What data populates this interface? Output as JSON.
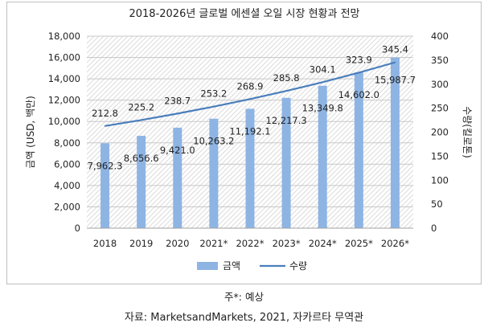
{
  "notes": {
    "forecast": "주*: 예상",
    "source": "자료: MarketsandMarkets, 2021, 자카르타 무역관"
  },
  "chart_data": {
    "type": "bar",
    "title": "2018-2026년 글로벌 에센셜 오일 시장 현황과 전망",
    "categories": [
      "2018",
      "2019",
      "2020",
      "2021*",
      "2022*",
      "2023*",
      "2024*",
      "2025*",
      "2026*"
    ],
    "series": [
      {
        "name": "금액",
        "type": "bar",
        "axis": "left",
        "color": "#8eb4e3",
        "values": [
          7962.3,
          8656.6,
          9421.0,
          10263.2,
          11192.1,
          12217.3,
          13349.8,
          14602.0,
          15987.7
        ],
        "labels": [
          "7,962.3",
          "8,656.6",
          "9,421.0",
          "10,263.2",
          "11,192.1",
          "12,217.3",
          "13,349.8",
          "14,602.0",
          "15,987.7"
        ]
      },
      {
        "name": "수량",
        "type": "line",
        "axis": "right",
        "color": "#4a7ebb",
        "values": [
          212.8,
          225.2,
          238.7,
          253.2,
          268.9,
          285.8,
          304.1,
          323.9,
          345.4
        ],
        "labels": [
          "212.8",
          "225.2",
          "238.7",
          "253.2",
          "268.9",
          "285.8",
          "304.1",
          "323.9",
          "345.4"
        ]
      }
    ],
    "ylabel": "금액 (USD, 백만)",
    "y2label": "수량(킬로톤)",
    "ylim": [
      0,
      18000
    ],
    "y2lim": [
      0,
      400
    ],
    "yticks": [
      "0",
      "2,000",
      "4,000",
      "6,000",
      "8,000",
      "10,000",
      "12,000",
      "14,000",
      "16,000",
      "18,000"
    ],
    "y2ticks": [
      "0",
      "50",
      "100",
      "150",
      "200",
      "250",
      "300",
      "350",
      "400"
    ],
    "grid": true,
    "legend_position": "bottom"
  }
}
